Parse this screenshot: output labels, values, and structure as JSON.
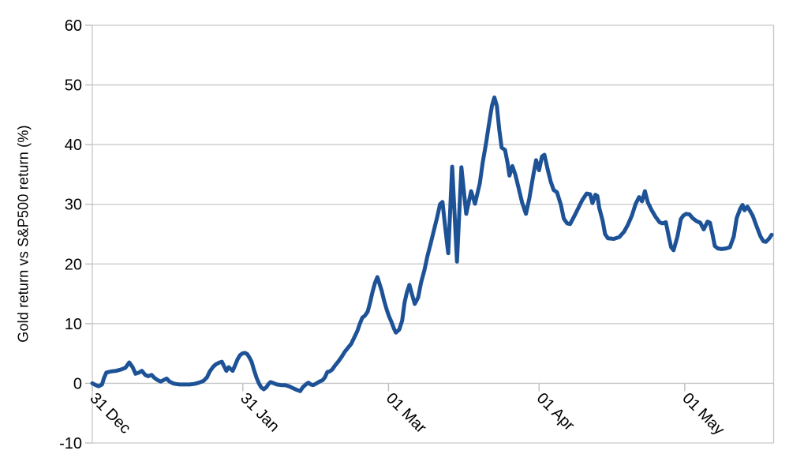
{
  "chart_data": {
    "type": "line",
    "title": "",
    "xlabel": "",
    "ylabel": "Gold return vs S&P500 return (%)",
    "legend": "none",
    "grid": "horizontal",
    "background": "#ffffff",
    "grid_color": "#c6c6c6",
    "tick_color": "#b9b9b9",
    "text_color": "#000000",
    "ylim": [
      -10,
      60
    ],
    "yticks": [
      60,
      50,
      40,
      30,
      20,
      10,
      0,
      -10
    ],
    "xlim_days": [
      0,
      140.3
    ],
    "xticks": [
      {
        "day": 0,
        "label": "31 Dec"
      },
      {
        "day": 31,
        "label": "31 Jan"
      },
      {
        "day": 61,
        "label": "01 Mar"
      },
      {
        "day": 92,
        "label": "01 Apr"
      },
      {
        "day": 122,
        "label": "01 May"
      }
    ],
    "series": [
      {
        "name": "Gold return vs S&P500 return (%)",
        "color": "#1d5296",
        "stroke_width": 5,
        "points": [
          [
            0,
            0
          ],
          [
            0.7,
            -0.3
          ],
          [
            1.3,
            -0.5
          ],
          [
            2,
            -0.2
          ],
          [
            2.4,
            0.9
          ],
          [
            2.9,
            1.8
          ],
          [
            3.9,
            2
          ],
          [
            4.9,
            2.1
          ],
          [
            5.9,
            2.3
          ],
          [
            6.8,
            2.6
          ],
          [
            7.6,
            3.5
          ],
          [
            8.3,
            2.7
          ],
          [
            8.9,
            1.6
          ],
          [
            9.6,
            1.8
          ],
          [
            10.2,
            2.1
          ],
          [
            10.9,
            1.4
          ],
          [
            11.5,
            1.2
          ],
          [
            12.2,
            1.4
          ],
          [
            12.8,
            0.9
          ],
          [
            13.5,
            0.5
          ],
          [
            14.1,
            0.3
          ],
          [
            14.8,
            0.6
          ],
          [
            15.3,
            0.8
          ],
          [
            15.9,
            0.3
          ],
          [
            16.6,
            0
          ],
          [
            17.1,
            -0.1
          ],
          [
            18,
            -0.2
          ],
          [
            19,
            -0.2
          ],
          [
            20,
            -0.2
          ],
          [
            21,
            -0.1
          ],
          [
            21.9,
            0.1
          ],
          [
            22.9,
            0.4
          ],
          [
            23.6,
            1
          ],
          [
            24.2,
            2
          ],
          [
            24.9,
            2.8
          ],
          [
            25.5,
            3.2
          ],
          [
            26.2,
            3.5
          ],
          [
            26.7,
            3.6
          ],
          [
            27.1,
            2.9
          ],
          [
            27.6,
            2.1
          ],
          [
            28.1,
            2.7
          ],
          [
            28.6,
            2.3
          ],
          [
            28.9,
            2.1
          ],
          [
            29.4,
            3
          ],
          [
            29.9,
            4
          ],
          [
            30.4,
            4.7
          ],
          [
            30.9,
            5
          ],
          [
            31.4,
            5.1
          ],
          [
            31.9,
            4.9
          ],
          [
            32.3,
            4.4
          ],
          [
            32.8,
            3.6
          ],
          [
            33.3,
            2.2
          ],
          [
            33.8,
            1
          ],
          [
            34.3,
            0
          ],
          [
            34.8,
            -0.7
          ],
          [
            35.3,
            -1
          ],
          [
            35.8,
            -0.7
          ],
          [
            36.3,
            -0.1
          ],
          [
            36.7,
            0.2
          ],
          [
            37.4,
            0
          ],
          [
            38,
            -0.2
          ],
          [
            38.9,
            -0.3
          ],
          [
            39.7,
            -0.3
          ],
          [
            40.5,
            -0.5
          ],
          [
            41.3,
            -0.8
          ],
          [
            42.1,
            -1.1
          ],
          [
            42.8,
            -1.3
          ],
          [
            43.4,
            -0.6
          ],
          [
            44.1,
            -0.1
          ],
          [
            44.5,
            0.1
          ],
          [
            45,
            -0.2
          ],
          [
            45.5,
            -0.3
          ],
          [
            46.2,
            0
          ],
          [
            46.8,
            0.3
          ],
          [
            47.4,
            0.5
          ],
          [
            47.9,
            1
          ],
          [
            48.4,
            1.9
          ],
          [
            48.9,
            2
          ],
          [
            49.4,
            2.3
          ],
          [
            50,
            3
          ],
          [
            50.7,
            3.7
          ],
          [
            51.4,
            4.5
          ],
          [
            52,
            5.3
          ],
          [
            52.6,
            5.9
          ],
          [
            53.3,
            6.6
          ],
          [
            53.9,
            7.6
          ],
          [
            54.6,
            8.8
          ],
          [
            55.1,
            10
          ],
          [
            55.6,
            11
          ],
          [
            56.1,
            11.3
          ],
          [
            56.7,
            12
          ],
          [
            57.2,
            13.5
          ],
          [
            57.7,
            15.3
          ],
          [
            58.2,
            16.8
          ],
          [
            58.7,
            17.8
          ],
          [
            59.1,
            16.8
          ],
          [
            59.6,
            15.5
          ],
          [
            60.1,
            13.8
          ],
          [
            60.6,
            12.4
          ],
          [
            61.1,
            11.2
          ],
          [
            61.6,
            10.3
          ],
          [
            62.1,
            9.2
          ],
          [
            62.5,
            8.5
          ],
          [
            63.2,
            9
          ],
          [
            63.8,
            10.5
          ],
          [
            64.3,
            13.5
          ],
          [
            64.8,
            15.3
          ],
          [
            65.3,
            16.5
          ],
          [
            65.8,
            15
          ],
          [
            66.4,
            13.3
          ],
          [
            67.1,
            14.4
          ],
          [
            67.7,
            16.9
          ],
          [
            68.4,
            19
          ],
          [
            69,
            21.3
          ],
          [
            69.7,
            23.5
          ],
          [
            70.3,
            25.5
          ],
          [
            71,
            27.8
          ],
          [
            71.6,
            30
          ],
          [
            72.1,
            30.4
          ],
          [
            72.7,
            26
          ],
          [
            73.3,
            21.8
          ],
          [
            74.1,
            36.3
          ],
          [
            75.1,
            20.4
          ],
          [
            76,
            36.2
          ],
          [
            77,
            28.4
          ],
          [
            78,
            32.2
          ],
          [
            78.8,
            30.1
          ],
          [
            79.8,
            33.5
          ],
          [
            80.4,
            37
          ],
          [
            81.1,
            40.3
          ],
          [
            81.7,
            43.5
          ],
          [
            82.3,
            46.5
          ],
          [
            82.8,
            47.9
          ],
          [
            83.3,
            46.5
          ],
          [
            83.8,
            42.5
          ],
          [
            84.3,
            39.5
          ],
          [
            85,
            39.1
          ],
          [
            85.5,
            37
          ],
          [
            85.9,
            34.8
          ],
          [
            86.5,
            36.4
          ],
          [
            87.1,
            35
          ],
          [
            87.7,
            33
          ],
          [
            88.5,
            30.3
          ],
          [
            89.3,
            28.4
          ],
          [
            90,
            31
          ],
          [
            90.8,
            34.8
          ],
          [
            91.4,
            37.4
          ],
          [
            92,
            35.7
          ],
          [
            92.6,
            38
          ],
          [
            93.1,
            38.3
          ],
          [
            93.7,
            36.1
          ],
          [
            94.4,
            33.8
          ],
          [
            95,
            32.4
          ],
          [
            95.7,
            32
          ],
          [
            96.5,
            29.9
          ],
          [
            97.1,
            27.6
          ],
          [
            97.8,
            26.8
          ],
          [
            98.4,
            26.7
          ],
          [
            99.3,
            28.1
          ],
          [
            100.1,
            29.4
          ],
          [
            100.9,
            30.7
          ],
          [
            101.8,
            31.8
          ],
          [
            102.5,
            31.7
          ],
          [
            103,
            30.2
          ],
          [
            103.6,
            31.6
          ],
          [
            104,
            31.4
          ],
          [
            104.4,
            29.4
          ],
          [
            105.1,
            27.2
          ],
          [
            105.6,
            25
          ],
          [
            106.2,
            24.3
          ],
          [
            107.4,
            24.2
          ],
          [
            108.5,
            24.5
          ],
          [
            109.5,
            25.4
          ],
          [
            110.3,
            26.6
          ],
          [
            111.1,
            28.1
          ],
          [
            111.9,
            30.1
          ],
          [
            112.6,
            31.2
          ],
          [
            113.2,
            30.5
          ],
          [
            113.8,
            32.2
          ],
          [
            114.4,
            30.3
          ],
          [
            115.2,
            29
          ],
          [
            116,
            27.9
          ],
          [
            116.8,
            27
          ],
          [
            117.4,
            26.8
          ],
          [
            118.1,
            27
          ],
          [
            118.7,
            24.6
          ],
          [
            119.2,
            22.8
          ],
          [
            119.7,
            22.3
          ],
          [
            120.5,
            24.6
          ],
          [
            121.2,
            27.5
          ],
          [
            121.7,
            28.1
          ],
          [
            122.3,
            28.4
          ],
          [
            123,
            28.3
          ],
          [
            123.6,
            27.7
          ],
          [
            124.4,
            27.2
          ],
          [
            125.2,
            26.9
          ],
          [
            125.9,
            25.8
          ],
          [
            126.7,
            27.1
          ],
          [
            127.2,
            26.9
          ],
          [
            127.7,
            25
          ],
          [
            128.2,
            23
          ],
          [
            128.8,
            22.6
          ],
          [
            129.6,
            22.5
          ],
          [
            130.5,
            22.6
          ],
          [
            131.3,
            22.8
          ],
          [
            132.1,
            24.6
          ],
          [
            132.7,
            27.7
          ],
          [
            133.4,
            29.2
          ],
          [
            133.9,
            29.9
          ],
          [
            134.3,
            29
          ],
          [
            134.9,
            29.6
          ],
          [
            135.5,
            28.8
          ],
          [
            136,
            28.1
          ],
          [
            136.8,
            26.3
          ],
          [
            137.6,
            24.6
          ],
          [
            138.2,
            23.8
          ],
          [
            138.7,
            23.7
          ],
          [
            139.4,
            24.3
          ],
          [
            139.9,
            24.9
          ]
        ]
      }
    ]
  }
}
